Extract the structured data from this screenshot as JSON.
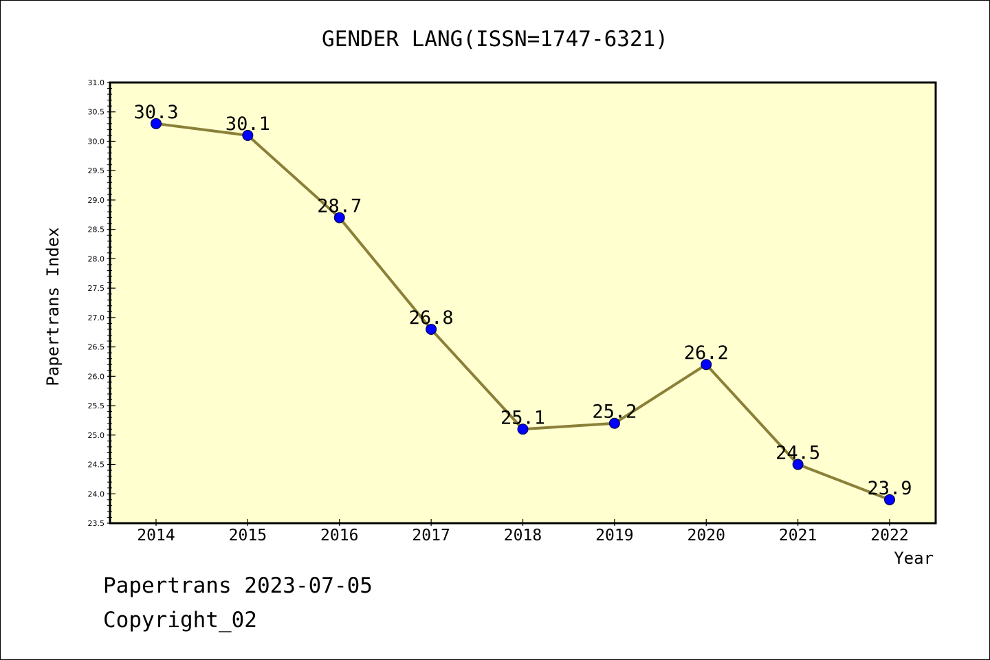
{
  "chart_data": {
    "type": "line",
    "title": "GENDER LANG(ISSN=1747-6321)",
    "xlabel": "Year",
    "ylabel": "Papertrans Index",
    "categories": [
      "2014",
      "2015",
      "2016",
      "2017",
      "2018",
      "2019",
      "2020",
      "2021",
      "2022"
    ],
    "series": [
      {
        "values": [
          30.3,
          30.1,
          28.7,
          26.8,
          25.1,
          25.2,
          26.2,
          24.5,
          23.9
        ],
        "data_labels": [
          "30.3",
          "30.1",
          "28.7",
          "26.8",
          "25.1",
          "25.2",
          "26.2",
          "24.5",
          "23.9"
        ]
      }
    ],
    "ylim": [
      23.5,
      31.0
    ],
    "yticks": [
      "23.5",
      "24.0",
      "24.5",
      "25.0",
      "25.5",
      "26.0",
      "26.5",
      "27.0",
      "27.5",
      "28.0",
      "28.5",
      "29.0",
      "29.5",
      "30.0",
      "30.5",
      "31.0"
    ],
    "grid": false,
    "legend": "none",
    "colors": {
      "plot_background": "#ffffd0",
      "line": "#8b8038",
      "marker": "#0000ff"
    }
  },
  "footer": {
    "line1": "Papertrans 2023-07-05",
    "line2": "Copyright_02"
  }
}
